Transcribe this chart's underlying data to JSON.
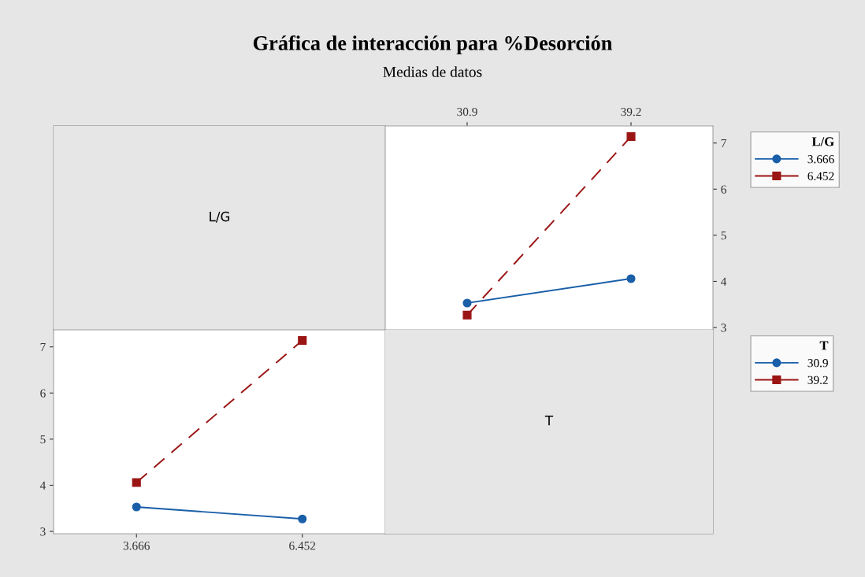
{
  "chart_data": [
    {
      "type": "other",
      "title": "Gráfica de interacción para %Desorción",
      "subtitle": "Medias de datos",
      "annotations": [
        "L/G"
      ]
    },
    {
      "type": "line",
      "categories": [
        "30.9",
        "39.2"
      ],
      "ylim": [
        2.95,
        7.37
      ],
      "yticks": [
        3,
        4,
        5,
        6,
        7
      ],
      "grid": false,
      "legend": "right",
      "legend_title": "L/G",
      "series": [
        {
          "name": "3.666",
          "color": "#1a5fa8",
          "values": [
            3.53,
            4.06
          ],
          "marker": "circle",
          "line_style": "solid"
        },
        {
          "name": "6.452",
          "color": "#9b1515",
          "values": [
            3.27,
            7.14
          ],
          "marker": "square",
          "line_style": "dashed"
        }
      ]
    },
    {
      "type": "line",
      "categories": [
        "3.666",
        "6.452"
      ],
      "ylim": [
        2.95,
        7.37
      ],
      "yticks": [
        3,
        4,
        5,
        6,
        7
      ],
      "grid": false,
      "legend": "right",
      "legend_title": "T",
      "series": [
        {
          "name": "30.9",
          "color": "#1a5fa8",
          "values": [
            3.53,
            3.27
          ],
          "marker": "circle",
          "line_style": "solid"
        },
        {
          "name": "39.2",
          "color": "#9b1515",
          "values": [
            4.06,
            7.14
          ],
          "marker": "square",
          "line_style": "dashed"
        }
      ]
    },
    {
      "type": "other",
      "annotations": [
        "T"
      ]
    }
  ]
}
